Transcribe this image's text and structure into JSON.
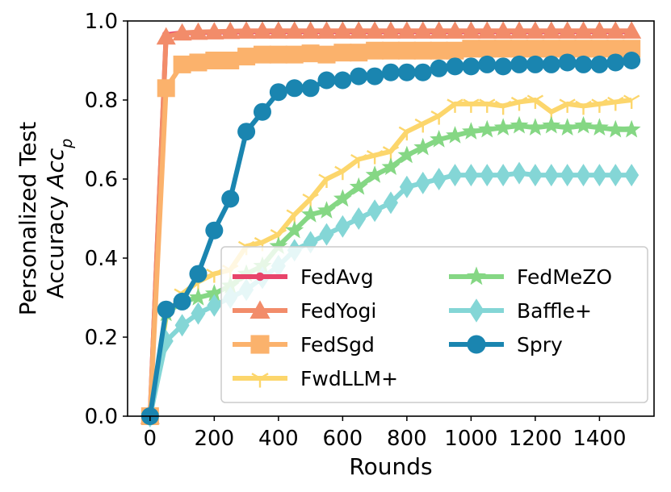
{
  "chart_data": {
    "type": "line",
    "title": "",
    "xlabel": "Rounds",
    "ylabel_line1": "Personalized Test",
    "ylabel_line2": "Accuracy ",
    "ylabel_math": "Acc",
    "ylabel_sub": "p",
    "xlim": [
      -70,
      1570
    ],
    "ylim": [
      0.0,
      1.0
    ],
    "xticks": [
      0,
      200,
      400,
      600,
      800,
      1000,
      1200,
      1400
    ],
    "yticks": [
      0.0,
      0.2,
      0.4,
      0.6,
      0.8,
      1.0
    ],
    "ytick_labels": [
      "0.0",
      "0.2",
      "0.4",
      "0.6",
      "0.8",
      "1.0"
    ],
    "grid": false,
    "legend_position": "lower-right",
    "x": [
      0,
      50,
      100,
      150,
      200,
      250,
      300,
      350,
      400,
      450,
      500,
      550,
      600,
      650,
      700,
      750,
      800,
      850,
      900,
      950,
      1000,
      1050,
      1100,
      1150,
      1200,
      1250,
      1300,
      1350,
      1400,
      1450,
      1500
    ],
    "series": [
      {
        "name": "FedAvg",
        "color": "#e8446a",
        "marker": "circle-small",
        "values": [
          0.0,
          0.965,
          0.97,
          0.97,
          0.972,
          0.972,
          0.973,
          0.973,
          0.973,
          0.973,
          0.973,
          0.973,
          0.973,
          0.973,
          0.973,
          0.973,
          0.973,
          0.973,
          0.973,
          0.973,
          0.973,
          0.973,
          0.973,
          0.973,
          0.973,
          0.973,
          0.973,
          0.973,
          0.973,
          0.973,
          0.973
        ]
      },
      {
        "name": "FedYogi",
        "color": "#f28c6a",
        "marker": "triangle",
        "values": [
          0.0,
          0.96,
          0.97,
          0.972,
          0.973,
          0.974,
          0.975,
          0.975,
          0.975,
          0.975,
          0.975,
          0.975,
          0.975,
          0.975,
          0.975,
          0.975,
          0.975,
          0.975,
          0.975,
          0.975,
          0.975,
          0.975,
          0.975,
          0.975,
          0.975,
          0.975,
          0.975,
          0.975,
          0.975,
          0.975,
          0.975
        ]
      },
      {
        "name": "FedSgd",
        "color": "#fbb26c",
        "marker": "square",
        "values": [
          0.0,
          0.83,
          0.89,
          0.895,
          0.9,
          0.9,
          0.91,
          0.915,
          0.915,
          0.915,
          0.918,
          0.915,
          0.92,
          0.92,
          0.925,
          0.925,
          0.925,
          0.925,
          0.925,
          0.925,
          0.93,
          0.93,
          0.93,
          0.93,
          0.93,
          0.93,
          0.93,
          0.93,
          0.93,
          0.93,
          0.93
        ]
      },
      {
        "name": "FwdLLM+",
        "color": "#fcd66c",
        "marker": "tri-down",
        "values": [
          0.0,
          0.25,
          0.31,
          0.34,
          0.36,
          0.37,
          0.43,
          0.44,
          0.46,
          0.51,
          0.55,
          0.6,
          0.62,
          0.65,
          0.66,
          0.67,
          0.72,
          0.74,
          0.76,
          0.79,
          0.79,
          0.79,
          0.785,
          0.795,
          0.8,
          0.77,
          0.79,
          0.785,
          0.79,
          0.795,
          0.8
        ]
      },
      {
        "name": "FedMeZO",
        "color": "#85d784",
        "marker": "star",
        "values": [
          0.0,
          0.26,
          0.29,
          0.3,
          0.31,
          0.33,
          0.36,
          0.38,
          0.43,
          0.47,
          0.51,
          0.52,
          0.55,
          0.58,
          0.61,
          0.63,
          0.66,
          0.68,
          0.7,
          0.71,
          0.72,
          0.725,
          0.73,
          0.735,
          0.73,
          0.735,
          0.73,
          0.735,
          0.73,
          0.725,
          0.725
        ]
      },
      {
        "name": "Baffle+",
        "color": "#84d6d6",
        "marker": "diamond",
        "values": [
          0.0,
          0.19,
          0.23,
          0.26,
          0.28,
          0.3,
          0.32,
          0.35,
          0.38,
          0.42,
          0.44,
          0.46,
          0.48,
          0.5,
          0.52,
          0.54,
          0.58,
          0.59,
          0.6,
          0.61,
          0.61,
          0.61,
          0.61,
          0.615,
          0.61,
          0.61,
          0.61,
          0.61,
          0.61,
          0.61,
          0.61
        ]
      },
      {
        "name": "Spry",
        "color": "#1a85b0",
        "marker": "circle",
        "values": [
          0.0,
          0.27,
          0.29,
          0.36,
          0.47,
          0.55,
          0.72,
          0.77,
          0.82,
          0.83,
          0.83,
          0.85,
          0.85,
          0.86,
          0.86,
          0.87,
          0.87,
          0.87,
          0.88,
          0.885,
          0.885,
          0.89,
          0.885,
          0.89,
          0.89,
          0.89,
          0.895,
          0.89,
          0.89,
          0.895,
          0.9
        ]
      }
    ],
    "legend_columns": [
      [
        "FedAvg",
        "FedYogi",
        "FedSgd",
        "FwdLLM+"
      ],
      [
        "FedMeZO",
        "Baffle+",
        "Spry"
      ]
    ]
  }
}
